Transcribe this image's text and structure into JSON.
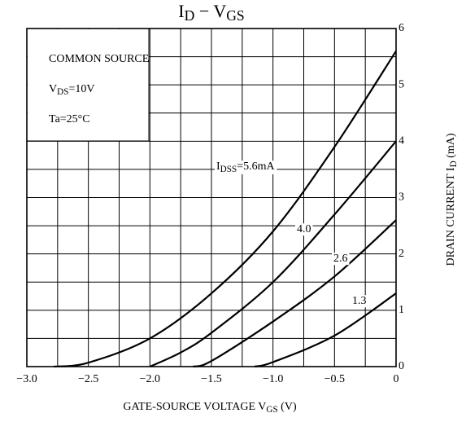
{
  "chart_data": {
    "type": "line",
    "title": [
      {
        "text": "I"
      },
      {
        "text": "D",
        "sub": true
      },
      {
        "text": " − V"
      },
      {
        "text": "GS",
        "sub": true
      }
    ],
    "x_label": [
      {
        "text": "GATE-SOURCE VOLTAGE  V"
      },
      {
        "text": "GS",
        "sub": true
      },
      {
        "text": "  (V)"
      }
    ],
    "y_label": [
      {
        "text": "DRAIN CURRENT  I"
      },
      {
        "text": "D",
        "sub": true
      },
      {
        "text": "   (mA)"
      }
    ],
    "conditions": [
      [
        {
          "text": "COMMON SOURCE"
        }
      ],
      [
        {
          "text": "V"
        },
        {
          "text": "DS",
          "sub": true
        },
        {
          "text": "=10V"
        }
      ],
      [
        {
          "text": "Ta=25°C"
        }
      ]
    ],
    "xlim": [
      -3,
      0
    ],
    "ylim": [
      0,
      6
    ],
    "xticks": [
      {
        "value": -3,
        "label": "−3.0"
      },
      {
        "value": -2.5,
        "label": "−2.5"
      },
      {
        "value": -2,
        "label": "−2.0"
      },
      {
        "value": -1.5,
        "label": "−1.5"
      },
      {
        "value": -1,
        "label": "−1.0"
      },
      {
        "value": -0.5,
        "label": "−0.5"
      },
      0
    ],
    "yticks": [
      0,
      1,
      2,
      3,
      4,
      5,
      6
    ],
    "x_minor_ticks": [
      -2.75,
      -2.25,
      -1.75,
      -1.25,
      -0.75,
      -0.25
    ],
    "y_minor_ticks": [
      0.5,
      1.5,
      2.5,
      3.5,
      4.5,
      5.5
    ],
    "grid": true,
    "series": [
      {
        "label": [
          {
            "text": "I"
          },
          {
            "text": "DSS",
            "sub": true
          },
          {
            "text": "=5.6mA"
          }
        ],
        "color": "#000000",
        "x": [
          -2.78,
          -2.5,
          -2,
          -1.5,
          -1,
          -0.5,
          0
        ],
        "values": [
          0,
          0.07,
          0.5,
          1.3,
          2.4,
          3.9,
          5.6
        ]
      },
      {
        "label": [
          {
            "text": "4.0"
          }
        ],
        "color": "#000000",
        "x": [
          -2,
          -1.75,
          -1.5,
          -1,
          -0.5,
          0
        ],
        "values": [
          0,
          0.25,
          0.6,
          1.5,
          2.7,
          4.0
        ]
      },
      {
        "label": [
          {
            "text": "2.6"
          }
        ],
        "color": "#000000",
        "x": [
          -1.65,
          -1.5,
          -1,
          -0.5,
          0
        ],
        "values": [
          0,
          0.1,
          0.8,
          1.6,
          2.6
        ]
      },
      {
        "label": [
          {
            "text": "1.3"
          }
        ],
        "color": "#000000",
        "x": [
          -1.15,
          -1,
          -0.5,
          0
        ],
        "values": [
          0,
          0.08,
          0.55,
          1.3
        ]
      }
    ]
  }
}
